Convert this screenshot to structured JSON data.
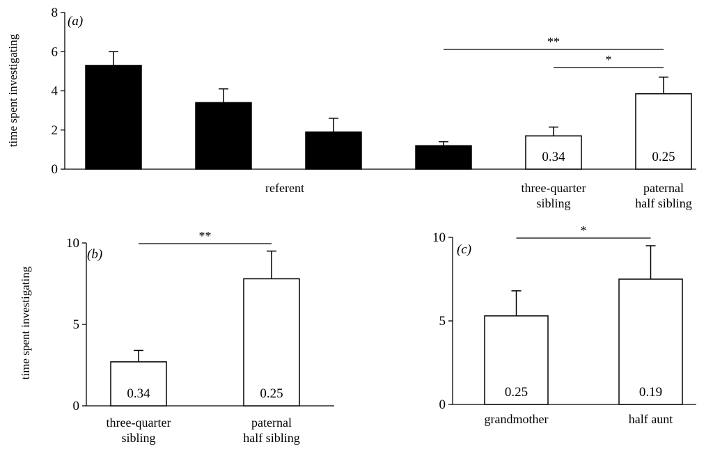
{
  "chart_data": [
    {
      "panel": "a",
      "type": "bar",
      "panel_label": "(a)",
      "ylabel": "time spent investigating",
      "ylim": [
        0,
        8
      ],
      "yticks": [
        0,
        2,
        4,
        6,
        8
      ],
      "group_labels": [
        "referent",
        "three-quarter\nsibling",
        "paternal\nhalf sibling"
      ],
      "bars": [
        {
          "value": 5.3,
          "error": 0.7,
          "fill": "#000000",
          "inner_label": ""
        },
        {
          "value": 3.4,
          "error": 0.7,
          "fill": "#000000",
          "inner_label": ""
        },
        {
          "value": 1.9,
          "error": 0.7,
          "fill": "#000000",
          "inner_label": ""
        },
        {
          "value": 1.2,
          "error": 0.2,
          "fill": "#000000",
          "inner_label": ""
        },
        {
          "value": 1.7,
          "error": 0.45,
          "fill": "#ffffff",
          "inner_label": "0.34"
        },
        {
          "value": 3.85,
          "error": 0.85,
          "fill": "#ffffff",
          "inner_label": "0.25"
        }
      ],
      "significance": [
        {
          "from_bar": 3,
          "to_bar": 5,
          "label": "**"
        },
        {
          "from_bar": 4,
          "to_bar": 5,
          "label": "*"
        }
      ]
    },
    {
      "panel": "b",
      "type": "bar",
      "panel_label": "(b)",
      "ylabel": "time spent investigating",
      "ylim": [
        0,
        10
      ],
      "yticks": [
        0,
        5,
        10
      ],
      "categories": [
        "three-quarter\nsibling",
        "paternal\nhalf sibling"
      ],
      "bars": [
        {
          "value": 2.7,
          "error": 0.7,
          "fill": "#ffffff",
          "inner_label": "0.34"
        },
        {
          "value": 7.8,
          "error": 1.7,
          "fill": "#ffffff",
          "inner_label": "0.25"
        }
      ],
      "significance": [
        {
          "from_bar": 0,
          "to_bar": 1,
          "label": "**"
        }
      ]
    },
    {
      "panel": "c",
      "type": "bar",
      "panel_label": "(c)",
      "ylabel": "",
      "ylim": [
        0,
        10
      ],
      "yticks": [
        0,
        5,
        10
      ],
      "categories": [
        "grandmother",
        "half aunt"
      ],
      "bars": [
        {
          "value": 5.3,
          "error": 1.5,
          "fill": "#ffffff",
          "inner_label": "0.25"
        },
        {
          "value": 7.5,
          "error": 2.0,
          "fill": "#ffffff",
          "inner_label": "0.19"
        }
      ],
      "significance": [
        {
          "from_bar": 0,
          "to_bar": 1,
          "label": "*"
        }
      ]
    }
  ]
}
